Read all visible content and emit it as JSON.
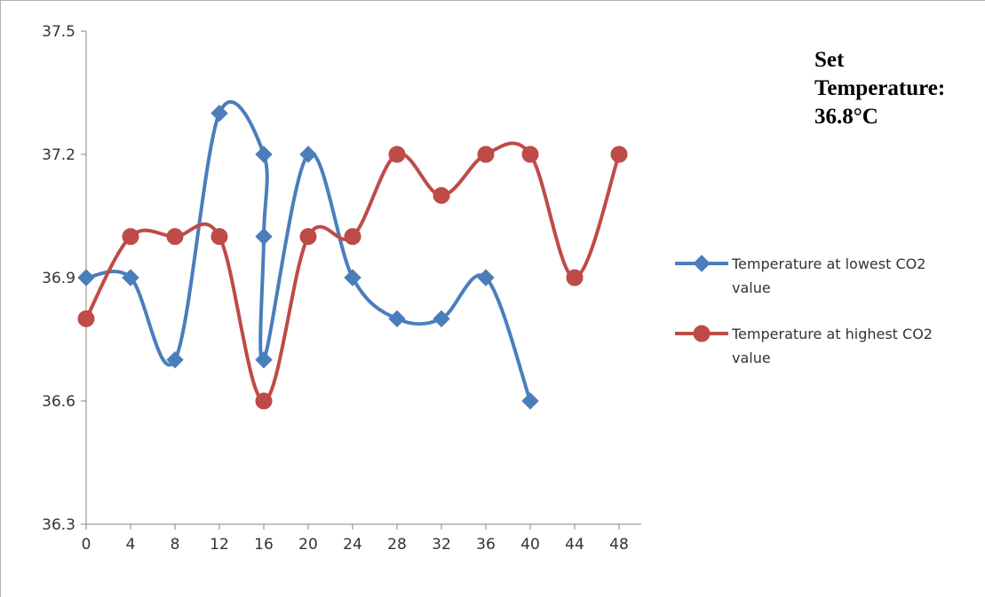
{
  "chart_data": {
    "type": "line",
    "x_ticks": [
      "0",
      "4",
      "8",
      "12",
      "16",
      "20",
      "24",
      "28",
      "32",
      "36",
      "40",
      "44",
      "48"
    ],
    "y_ticks": [
      "36.3",
      "36.6",
      "36.9",
      "37.2",
      "37.5"
    ],
    "ylim": [
      36.3,
      37.5
    ],
    "xlim": [
      0,
      48
    ],
    "grid": false,
    "legend_position": "right",
    "annotation_lines": [
      "Set",
      "Temperature:",
      "36.8°C"
    ],
    "series": [
      {
        "name": "Temperature at lowest CO2 value",
        "label_lines": [
          "Temperature at lowest CO2",
          "value"
        ],
        "color": "#4a7ebb",
        "marker": "diamond",
        "x": [
          0,
          4,
          8,
          12,
          16,
          16,
          16,
          20,
          24,
          28,
          32,
          36,
          40
        ],
        "y": [
          36.9,
          36.9,
          36.7,
          37.3,
          37.2,
          37.0,
          36.7,
          37.2,
          36.9,
          36.8,
          36.8,
          36.9,
          36.6
        ]
      },
      {
        "name": "Temperature at highest CO2 value",
        "label_lines": [
          "Temperature at highest CO2",
          "value"
        ],
        "color": "#be4b48",
        "marker": "circle",
        "x": [
          0,
          4,
          8,
          12,
          16,
          20,
          24,
          28,
          32,
          36,
          40,
          44,
          48
        ],
        "y": [
          36.8,
          37.0,
          37.0,
          37.0,
          36.6,
          37.0,
          37.0,
          37.2,
          37.1,
          37.2,
          37.2,
          36.9,
          37.2
        ]
      }
    ]
  }
}
